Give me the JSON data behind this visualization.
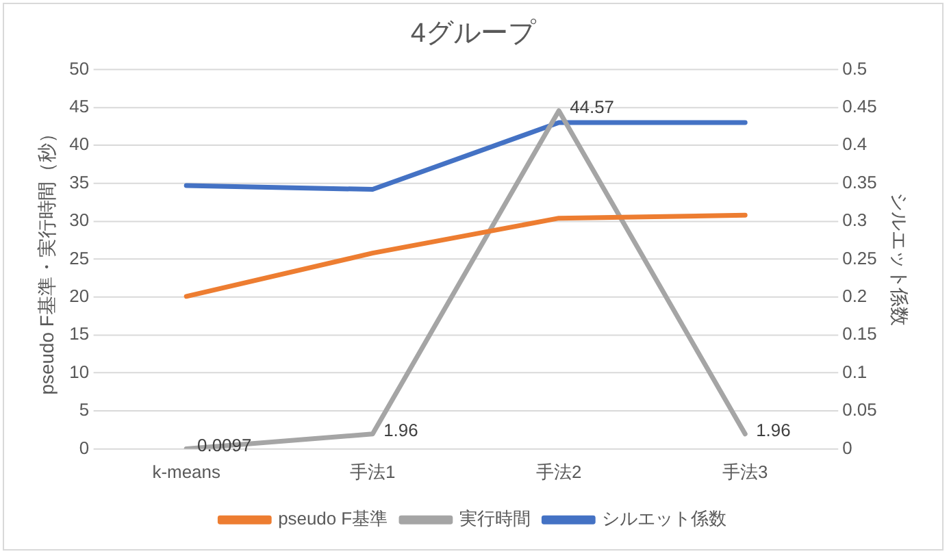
{
  "chart_data": {
    "type": "line",
    "title": "4グループ",
    "categories": [
      "k-means",
      "手法1",
      "手法2",
      "手法3"
    ],
    "ylabel": "pseudo F基準・実行時間（秒）",
    "y2label": "シルエット係数",
    "ylim": [
      0,
      50
    ],
    "yticks": [
      0,
      5,
      10,
      15,
      20,
      25,
      30,
      35,
      40,
      45,
      50
    ],
    "y2lim": [
      0,
      0.5
    ],
    "y2ticks": [
      0,
      0.05,
      0.1,
      0.15,
      0.2,
      0.25,
      0.3,
      0.35,
      0.4,
      0.45,
      0.5
    ],
    "grid": "y",
    "legend": "bottom",
    "marker": "none",
    "line_style": "solid",
    "series": [
      {
        "name": "pseudo F基準",
        "color": "#ed7d31",
        "values": [
          20.1,
          25.8,
          30.4,
          30.8
        ]
      },
      {
        "name": "実行時間",
        "color": "#a5a5a5",
        "values": [
          0.0097,
          1.96,
          44.57,
          1.96
        ],
        "value_labels": [
          "0.0097",
          "1.96",
          "44.57",
          "1.96"
        ]
      },
      {
        "name": "シルエット係数",
        "color": "#4472c4",
        "values": [
          0.347,
          0.342,
          0.43,
          0.43
        ],
        "axis": "y2"
      }
    ]
  }
}
